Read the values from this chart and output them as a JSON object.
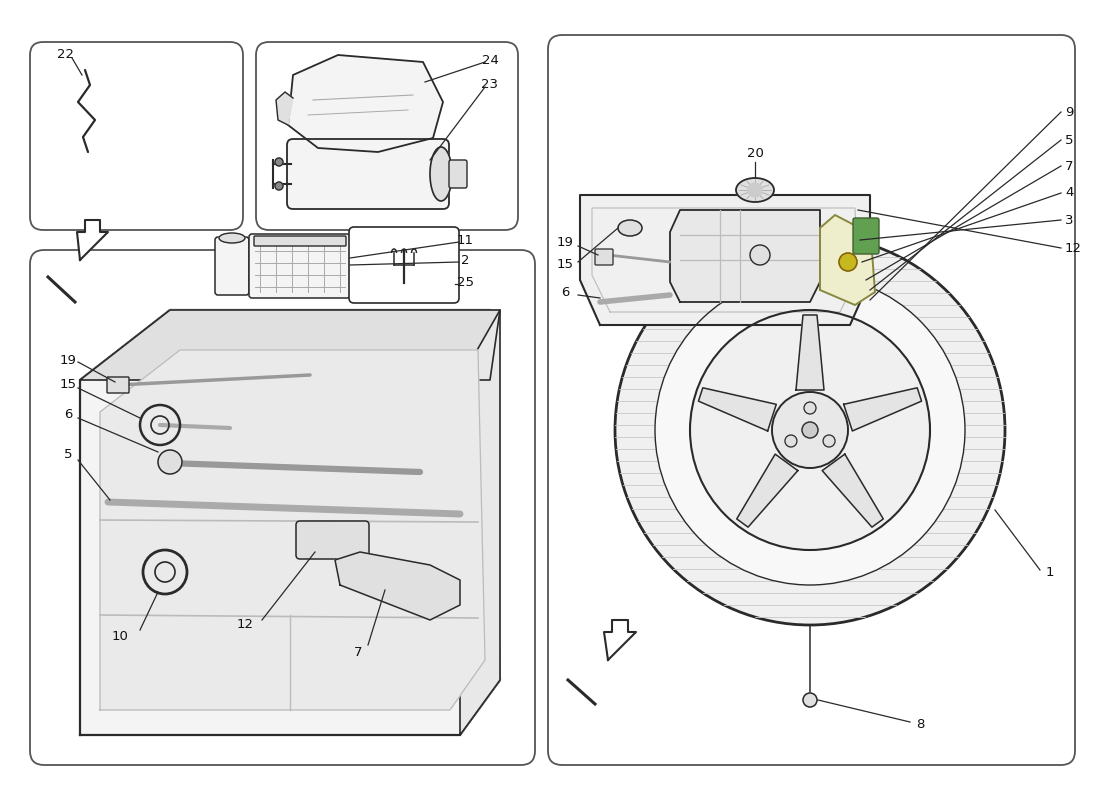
{
  "background_color": "#ffffff",
  "line_color": "#2a2a2a",
  "text_color": "#111111",
  "fig_width": 11.0,
  "fig_height": 8.0,
  "dpi": 100,
  "gray_fill": "#f4f4f4",
  "dark_fill": "#e0e0e0",
  "mid_fill": "#eeeeee"
}
